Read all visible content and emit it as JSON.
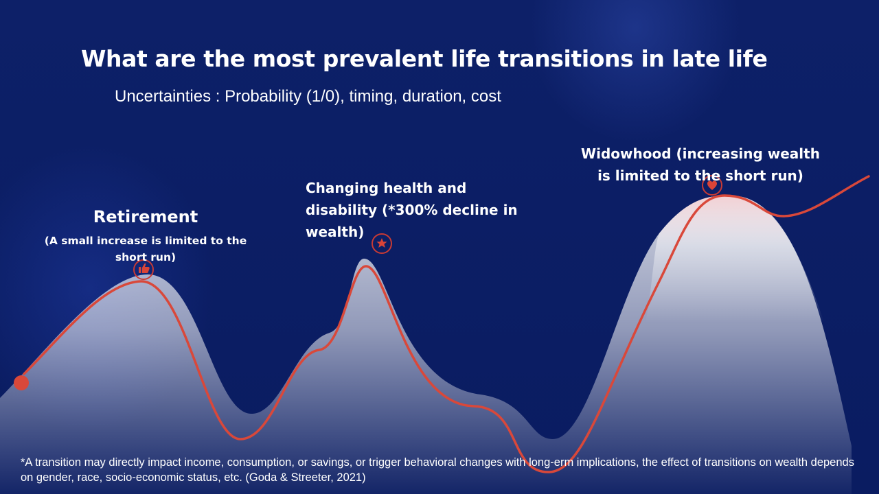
{
  "title": "What are the most prevalent life transitions in late life",
  "subtitle": "Uncertainties : Probability (1/0), timing, duration, cost",
  "transitions": {
    "retirement": {
      "title": "Retirement",
      "description": "(A small increase is limited to the short run)",
      "icon": "thumbs-up-icon"
    },
    "health": {
      "label": "Changing health and disability (*300% decline in wealth)",
      "icon": "star-icon"
    },
    "widowhood": {
      "label": "Widowhood (increasing wealth is limited to the short run)",
      "icon": "heart-icon"
    }
  },
  "footnote": "*A transition may directly impact income, consumption, or savings, or trigger behavioral changes with long-erm implications, the effect of transitions on wealth depends on gender, race, socio-economic status, etc. (Goda & Streeter, 2021)",
  "colors": {
    "background": "#0c1f66",
    "line": "#d9483a",
    "text": "#ffffff"
  }
}
